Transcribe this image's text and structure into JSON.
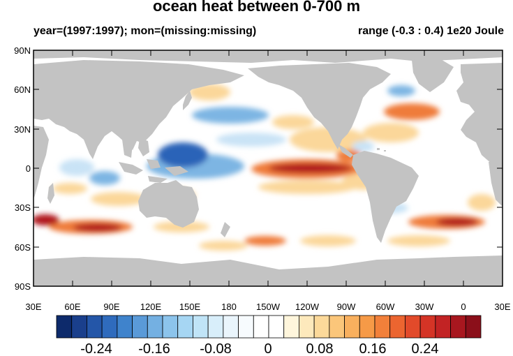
{
  "title": "ocean heat between 0-700 m",
  "subtitle_left": "year=(1997:1997); mon=(missing:missing)",
  "subtitle_right": "range (-0.3 : 0.4) 1e20 Joule",
  "y_axis_labels": [
    "90N",
    "60N",
    "30N",
    "0",
    "30S",
    "60S",
    "90S"
  ],
  "x_axis_labels": [
    "30E",
    "60E",
    "90E",
    "120E",
    "150E",
    "180",
    "150W",
    "120W",
    "90W",
    "60W",
    "30W",
    "0",
    "30E"
  ],
  "colorbar": {
    "labels": [
      "-0.24",
      "-0.16",
      "-0.08",
      "0",
      "0.08",
      "0.16",
      "0.24"
    ],
    "colors": [
      "#0d2a6b",
      "#1a3f8c",
      "#2456a8",
      "#2f6bbd",
      "#3f83cc",
      "#5a9ad8",
      "#74b0e2",
      "#8cc4ec",
      "#a6d6f3",
      "#c0e4f7",
      "#d8eefa",
      "#eaf5fc",
      "#f7fbfe",
      "#ffffff",
      "#ffffff",
      "#fff6dc",
      "#fde9bc",
      "#fcd99a",
      "#fbc67a",
      "#f9b05e",
      "#f69a47",
      "#f2803a",
      "#ec6530",
      "#e24a2a",
      "#d53426",
      "#c22324",
      "#a8171f",
      "#8b0f1a"
    ]
  },
  "map_colors": {
    "land": "#c3c3c3",
    "ocean": "#ffffff",
    "warm_strong": "#b0131d",
    "warm": "#ef7b3a",
    "warm_light": "#fbd79a",
    "cool_strong": "#2b63b8",
    "cool": "#7db5e3",
    "cool_light": "#c9e3f6"
  }
}
